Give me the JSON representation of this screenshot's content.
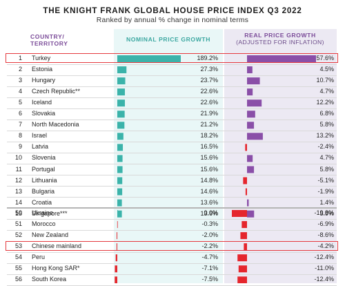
{
  "title": "THE KNIGHT FRANK GLOBAL HOUSE PRICE INDEX Q3 2022",
  "subtitle": "Ranked by annual % change in nominal terms",
  "headers": {
    "country": [
      "COUNTRY/",
      "TERRITORY"
    ],
    "nominal": "NOMINAL PRICE GROWTH",
    "real": "REAL PRICE GROWTH",
    "real_sub": "(ADJUSTED FOR INFLATION)"
  },
  "colors": {
    "nominal_bar": "#3bb3aa",
    "real_positive": "#8a4fa8",
    "real_negative": "#e5262d",
    "highlight": "#e5393e",
    "nominal_bg": "#e9f7f7",
    "real_bg": "#ece9f3"
  },
  "chart_data": {
    "type": "bar",
    "highlighted": [
      "Turkey",
      "Chinese mainland"
    ],
    "rows": [
      {
        "rank": "1",
        "country": "Turkey",
        "nominal": 189.2,
        "nominal_label": "189.2%",
        "real": 57.6,
        "real_label": "57.6%"
      },
      {
        "rank": "2",
        "country": "Estonia",
        "nominal": 27.3,
        "nominal_label": "27.3%",
        "real": 4.5,
        "real_label": "4.5%"
      },
      {
        "rank": "3",
        "country": "Hungary",
        "nominal": 23.7,
        "nominal_label": "23.7%",
        "real": 10.7,
        "real_label": "10.7%"
      },
      {
        "rank": "4",
        "country": "Czech Republic**",
        "nominal": 22.6,
        "nominal_label": "22.6%",
        "real": 4.7,
        "real_label": "4.7%"
      },
      {
        "rank": "5",
        "country": "Iceland",
        "nominal": 22.6,
        "nominal_label": "22.6%",
        "real": 12.2,
        "real_label": "12.2%"
      },
      {
        "rank": "6",
        "country": "Slovakia",
        "nominal": 21.9,
        "nominal_label": "21.9%",
        "real": 6.8,
        "real_label": "6.8%"
      },
      {
        "rank": "7",
        "country": "North Macedonia",
        "nominal": 21.2,
        "nominal_label": "21.2%",
        "real": 5.8,
        "real_label": "5.8%"
      },
      {
        "rank": "8",
        "country": "Israel",
        "nominal": 18.2,
        "nominal_label": "18.2%",
        "real": 13.2,
        "real_label": "13.2%"
      },
      {
        "rank": "9",
        "country": "Latvia",
        "nominal": 16.5,
        "nominal_label": "16.5%",
        "real": -2.4,
        "real_label": "-2.4%"
      },
      {
        "rank": "10",
        "country": "Slovenia",
        "nominal": 15.6,
        "nominal_label": "15.6%",
        "real": 4.7,
        "real_label": "4.7%"
      },
      {
        "rank": "11",
        "country": "Portugal",
        "nominal": 15.6,
        "nominal_label": "15.6%",
        "real": 5.8,
        "real_label": "5.8%"
      },
      {
        "rank": "12",
        "country": "Lithuania",
        "nominal": 14.8,
        "nominal_label": "14.8%",
        "real": -5.1,
        "real_label": "-5.1%"
      },
      {
        "rank": "13",
        "country": "Bulgaria",
        "nominal": 14.6,
        "nominal_label": "14.6%",
        "real": -1.9,
        "real_label": "-1.9%"
      },
      {
        "rank": "14",
        "country": "Croatia",
        "nominal": 13.6,
        "nominal_label": "13.6%",
        "real": 1.4,
        "real_label": "1.4%"
      },
      {
        "rank": "15",
        "country": "Singapore***",
        "nominal": 13.6,
        "nominal_label": "13.6%",
        "real": 5.9,
        "real_label": "5.9%"
      },
      {
        "rank": "50",
        "country": "Ukraine",
        "nominal": 0.0,
        "nominal_label": "0.0%",
        "real": -19.8,
        "real_label": "-19.8%"
      },
      {
        "rank": "51",
        "country": "Morocco",
        "nominal": -0.3,
        "nominal_label": "-0.3%",
        "real": -6.9,
        "real_label": "-6.9%"
      },
      {
        "rank": "52",
        "country": "New Zealand",
        "nominal": -2.0,
        "nominal_label": "-2.0%",
        "real": -8.6,
        "real_label": "-8.6%"
      },
      {
        "rank": "53",
        "country": "Chinese mainland",
        "nominal": -2.2,
        "nominal_label": "-2.2%",
        "real": -4.2,
        "real_label": "-4.2%"
      },
      {
        "rank": "54",
        "country": "Peru",
        "nominal": -4.7,
        "nominal_label": "-4.7%",
        "real": -12.4,
        "real_label": "-12.4%"
      },
      {
        "rank": "55",
        "country": "Hong Kong SAR*",
        "nominal": -7.1,
        "nominal_label": "-7.1%",
        "real": -11.0,
        "real_label": "-11.0%"
      },
      {
        "rank": "56",
        "country": "South Korea",
        "nominal": -7.5,
        "nominal_label": "-7.5%",
        "real": -12.4,
        "real_label": "-12.4%"
      }
    ]
  }
}
